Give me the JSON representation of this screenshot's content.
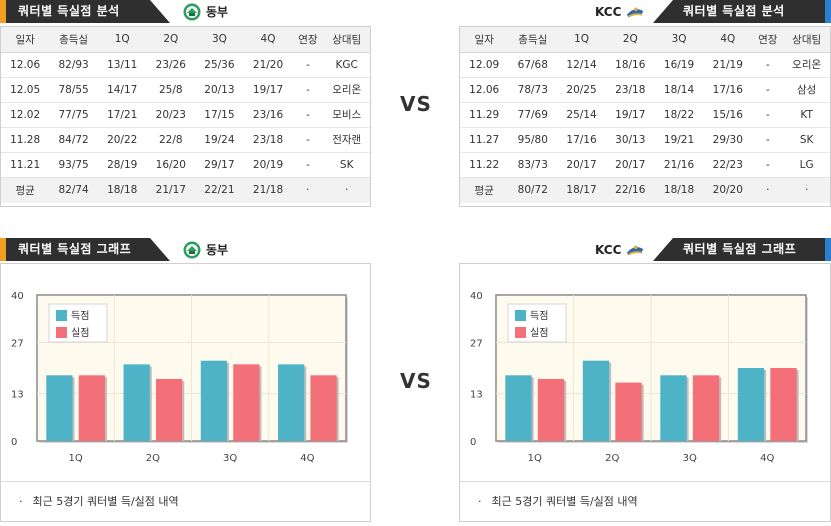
{
  "left_team": {
    "name": "동부",
    "logo_icon": "dongbu-logo-icon"
  },
  "right_team": {
    "name": "KCC",
    "logo_icon": "kcc-logo-icon"
  },
  "analysis_title": "쿼터별 득실점 분석",
  "graph_title": "쿼터별 득실점 그래프",
  "vs_label": "VS",
  "columns": [
    "일자",
    "총득실",
    "1Q",
    "2Q",
    "3Q",
    "4Q",
    "연장",
    "상대팀"
  ],
  "left_table": {
    "rows": [
      [
        "12.06",
        "82/93",
        "13/11",
        "23/26",
        "25/36",
        "21/20",
        "-",
        "KGC"
      ],
      [
        "12.05",
        "78/55",
        "14/17",
        "25/8",
        "20/13",
        "19/17",
        "-",
        "오리온"
      ],
      [
        "12.02",
        "77/75",
        "17/21",
        "20/23",
        "17/15",
        "23/16",
        "-",
        "모비스"
      ],
      [
        "11.28",
        "84/72",
        "20/22",
        "22/8",
        "19/24",
        "23/18",
        "-",
        "전자랜"
      ],
      [
        "11.21",
        "93/75",
        "28/19",
        "16/20",
        "29/17",
        "20/19",
        "-",
        "SK"
      ]
    ],
    "avg": [
      "평균",
      "82/74",
      "18/18",
      "21/17",
      "22/21",
      "21/18",
      "·",
      "·"
    ]
  },
  "right_table": {
    "rows": [
      [
        "12.09",
        "67/68",
        "12/14",
        "18/16",
        "16/19",
        "21/19",
        "-",
        "오리온"
      ],
      [
        "12.06",
        "78/73",
        "20/25",
        "23/18",
        "18/14",
        "17/16",
        "-",
        "삼성"
      ],
      [
        "11.29",
        "77/69",
        "25/14",
        "19/17",
        "18/22",
        "15/16",
        "-",
        "KT"
      ],
      [
        "11.27",
        "95/80",
        "17/16",
        "30/13",
        "19/21",
        "29/30",
        "-",
        "SK"
      ],
      [
        "11.22",
        "83/73",
        "20/17",
        "20/17",
        "21/16",
        "22/23",
        "-",
        "LG"
      ]
    ],
    "avg": [
      "평균",
      "80/72",
      "18/17",
      "22/16",
      "18/18",
      "20/20",
      "·",
      "·"
    ]
  },
  "chart_note": "최근 5경기 쿼터별 득/실점 내역",
  "note_bullet": "·",
  "colors": {
    "scored": "#4fb3c8",
    "allowed": "#f37079",
    "plot_bg": "#fefbee",
    "header_bg": "#2f2f2f",
    "accent_left": "#f0a01e",
    "accent_right": "#2c7fd1"
  },
  "chart_data": [
    {
      "type": "bar",
      "categories": [
        "1Q",
        "2Q",
        "3Q",
        "4Q"
      ],
      "series": [
        {
          "name": "득점",
          "values": [
            18,
            21,
            22,
            21
          ]
        },
        {
          "name": "실점",
          "values": [
            18,
            17,
            21,
            18
          ]
        }
      ],
      "yticks": [
        "0",
        "13",
        "27",
        "40"
      ],
      "ylim": [
        0,
        40
      ],
      "legend": "top-left",
      "grid": true
    },
    {
      "type": "bar",
      "categories": [
        "1Q",
        "2Q",
        "3Q",
        "4Q"
      ],
      "series": [
        {
          "name": "득점",
          "values": [
            18,
            22,
            18,
            20
          ]
        },
        {
          "name": "실점",
          "values": [
            17,
            16,
            18,
            20
          ]
        }
      ],
      "yticks": [
        "0",
        "13",
        "27",
        "40"
      ],
      "ylim": [
        0,
        40
      ],
      "legend": "top-left",
      "grid": true
    }
  ]
}
